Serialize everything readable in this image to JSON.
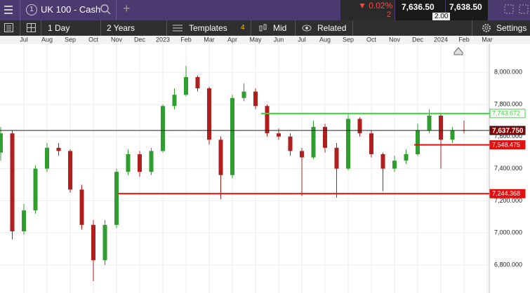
{
  "header": {
    "instrument": "UK 100 - Cash",
    "tab_number": "1",
    "change": "▼ 0.02%",
    "change_points": "2",
    "bid": "7,636.50",
    "spread": "2.00",
    "ask": "7,638.50"
  },
  "toolbar": {
    "interval": "1 Day",
    "range": "2 Years",
    "templates": "Templates",
    "templates_count": "4",
    "price_type": "Mid",
    "related": "Related",
    "settings": "Settings"
  },
  "chart_data": {
    "type": "candlestick",
    "categories": [
      null,
      null,
      "Jul",
      null,
      "Aug",
      null,
      "Sep",
      null,
      "Oct",
      null,
      "Nov",
      null,
      "Dec",
      null,
      "2023",
      null,
      "Feb",
      null,
      "Mar",
      null,
      "Apr",
      null,
      "May",
      null,
      "Jun",
      null,
      "Jul",
      null,
      "Aug",
      null,
      "Sep",
      null,
      "Oct",
      null,
      "Nov",
      null,
      "Dec",
      null,
      "2024",
      null,
      "Feb",
      null,
      "Mar"
    ],
    "open": [
      7500,
      7620,
      7010,
      7140,
      7400,
      7530,
      7510,
      7270,
      7050,
      6830,
      7050,
      7380,
      7490,
      7380,
      7510,
      7790,
      7860,
      7970,
      7900,
      7580,
      7360,
      7840,
      7880,
      7790,
      7620,
      7600,
      7510,
      7470,
      7660,
      7530,
      7400,
      7710,
      7620,
      7490,
      7400,
      7450,
      7490,
      7640,
      7730,
      7580,
      7640,
      null,
      null
    ],
    "high": [
      7660,
      7640,
      7180,
      7420,
      7560,
      7560,
      7520,
      7300,
      7080,
      7080,
      7400,
      7520,
      7510,
      7530,
      7800,
      7900,
      8040,
      7980,
      7910,
      7600,
      7860,
      7930,
      7900,
      7800,
      7650,
      7620,
      7530,
      7700,
      7680,
      7560,
      7740,
      7720,
      7640,
      7500,
      7480,
      7520,
      7680,
      7770,
      7740,
      7660,
      7700,
      null,
      null
    ],
    "low": [
      7450,
      6960,
      6990,
      7120,
      7380,
      7480,
      7250,
      7020,
      6700,
      6800,
      7030,
      7360,
      7350,
      7360,
      7500,
      7770,
      7850,
      7880,
      7550,
      7210,
      7340,
      7820,
      7770,
      7600,
      7580,
      7480,
      7230,
      7460,
      7500,
      7220,
      7390,
      7600,
      7470,
      7260,
      7380,
      7430,
      7480,
      7620,
      7400,
      7560,
      7620,
      null,
      null
    ],
    "close": [
      7620,
      7010,
      7140,
      7400,
      7530,
      7510,
      7270,
      7050,
      6830,
      7050,
      7380,
      7490,
      7380,
      7510,
      7790,
      7860,
      7970,
      7900,
      7580,
      7360,
      7840,
      7880,
      7790,
      7620,
      7600,
      7510,
      7470,
      7660,
      7530,
      7400,
      7710,
      7620,
      7490,
      7400,
      7450,
      7490,
      7640,
      7730,
      7580,
      7640,
      7638,
      null,
      null
    ],
    "up_color": "#2e9e2e",
    "down_color": "#b01e1e",
    "ylim": [
      6626,
      8175
    ],
    "yticks": [
      {
        "value": 6800,
        "label": "6,800.000"
      },
      {
        "value": 7000,
        "label": "7,000.000"
      },
      {
        "value": 7200,
        "label": "7,200.000"
      },
      {
        "value": 7400,
        "label": "7,400.000"
      },
      {
        "value": 7600,
        "label": "7,600.000"
      },
      {
        "value": 7800,
        "label": "7,800.000"
      },
      {
        "value": 8000,
        "label": "8,000.000"
      }
    ],
    "grid": true,
    "hlines": [
      {
        "value": 7743.672,
        "label": "7,743.672",
        "color": "#33dd33"
      },
      {
        "value": 7244.368,
        "label": "7,244.368",
        "color": "#e01010"
      },
      {
        "value": 7548.475,
        "label": "7,548.475",
        "color": "#e01010"
      },
      {
        "value": 7637.75,
        "label": "7,637.750",
        "color": "#222222"
      }
    ]
  }
}
